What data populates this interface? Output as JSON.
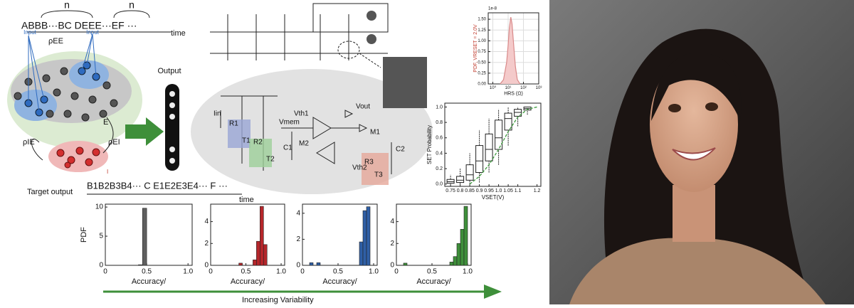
{
  "diagram": {
    "sequence": "ABBB···BC DEEE···EF ···",
    "n_labels": [
      "n",
      "n"
    ],
    "time_top": "time",
    "input_labels": [
      "Input",
      "Input"
    ],
    "rho_ee": "ρEE",
    "excitatory": "E",
    "rho_ie": "ρIE",
    "rho_ei": "ρEI",
    "inhibitory": "I",
    "output": "Output",
    "target_output": "Target output",
    "target_sequence": "B1B2B3B4··· C    E1E2E3E4··· F    ···",
    "time_bottom": "time",
    "variability": "Increasing Variability",
    "circuit_labels": [
      "Iin",
      "R1",
      "T1",
      "R2",
      "T2",
      "Vmem",
      "C1",
      "M2",
      "Vth1",
      "Vout",
      "M1",
      "Vth2",
      "R3",
      "T3",
      "C2"
    ]
  },
  "chart_data": [
    {
      "type": "histogram",
      "color": "#5f5f5f",
      "ylabel": "PDF",
      "xlabel": "Accuracy/",
      "bins": [
        0.4,
        0.45,
        0.5
      ],
      "values": [
        0.1,
        9.8
      ],
      "xlim": [
        0,
        1.05
      ],
      "xticks": [
        0,
        0.5,
        {
          "value": 1,
          "label": "1.0"
        }
      ],
      "ylim": [
        0,
        10.5
      ],
      "yticks": [
        0,
        5,
        10
      ]
    },
    {
      "type": "histogram",
      "color": "#b5262b",
      "xlabel": "Accuracy/",
      "bins": [
        0.4,
        0.45,
        0.5,
        0.55,
        0.6,
        0.65,
        0.7,
        0.75,
        0.8
      ],
      "values": [
        0.2,
        0,
        0,
        0,
        0.5,
        2.2,
        5.4,
        1.9
      ],
      "xlim": [
        0,
        1.05
      ],
      "xticks": [
        0,
        0.5,
        {
          "value": 1,
          "label": "1.0"
        }
      ],
      "ylim": [
        0,
        5.6
      ],
      "yticks": [
        0,
        2,
        4
      ]
    },
    {
      "type": "histogram",
      "color": "#2f5fa6",
      "xlabel": "Accuracy/",
      "bins": [
        0.1,
        0.15,
        0.2,
        0.25,
        0.3,
        0.35,
        0.4,
        0.45,
        0.5,
        0.55,
        0.6,
        0.65,
        0.7,
        0.75,
        0.8,
        0.85,
        0.9,
        0.95
      ],
      "values": [
        0.2,
        0,
        0.2,
        0,
        0,
        0,
        0,
        0,
        0,
        0,
        0,
        0,
        0,
        0,
        1.8,
        4.2,
        4.5
      ],
      "xlim": [
        0,
        1.05
      ],
      "xticks": [
        0,
        0.5,
        {
          "value": 1,
          "label": "1.0"
        }
      ],
      "ylim": [
        0,
        4.7
      ],
      "yticks": [
        0,
        2,
        4
      ]
    },
    {
      "type": "histogram",
      "color": "#3e8f3a",
      "xlabel": "Accuracy/",
      "bins": [
        0.1,
        0.15,
        0.2,
        0.25,
        0.3,
        0.35,
        0.4,
        0.45,
        0.5,
        0.55,
        0.6,
        0.65,
        0.7,
        0.75,
        0.8,
        0.85,
        0.9,
        0.95,
        1.0
      ],
      "values": [
        0.2,
        0,
        0,
        0,
        0,
        0,
        0,
        0,
        0,
        0,
        0,
        0,
        0,
        0.3,
        0.8,
        2,
        3.3,
        5.4
      ],
      "xlim": [
        0,
        1.05
      ],
      "xticks": [
        0,
        0.5,
        {
          "value": 1,
          "label": "1.0"
        }
      ],
      "ylim": [
        0,
        5.6
      ],
      "yticks": [
        0,
        2,
        4
      ]
    },
    {
      "type": "line",
      "color": "#d98a8a",
      "fill": "#f4caca",
      "grid": true,
      "xlog": true,
      "offset_label": "1e-8",
      "ylabel": "PDF, VRESET = 2.0V",
      "ylabel_color": "#c0392b",
      "xlabel": "HRS (Ω)",
      "x": [
        3,
        5,
        8,
        10,
        12,
        15,
        18,
        22,
        30,
        40,
        60
      ],
      "values": [
        0,
        0.1,
        0.5,
        0.9,
        1.3,
        1.55,
        1.4,
        1.0,
        0.4,
        0.1,
        0
      ],
      "xlim": [
        0.5,
        1000
      ],
      "xticks": [
        {
          "value": 1,
          "label": "10⁰"
        },
        {
          "value": 10,
          "label": "10¹"
        },
        {
          "value": 100,
          "label": "10²"
        },
        {
          "value": 1000,
          "label": "10³"
        }
      ],
      "ylim": [
        0,
        1.65
      ],
      "yticks": [
        {
          "value": 0,
          "label": "0.00"
        },
        {
          "value": 0.25,
          "label": "0.25"
        },
        {
          "value": 0.5,
          "label": "0.50"
        },
        {
          "value": 0.75,
          "label": "0.75"
        },
        {
          "value": 1,
          "label": "1.00"
        },
        {
          "value": 1.25,
          "label": "1.25"
        },
        {
          "value": 1.5,
          "label": "1.50"
        }
      ]
    },
    {
      "type": "box",
      "ylabel": "SET Probability",
      "xlabel": "VSET(V)",
      "x": [
        0.75,
        0.8,
        0.85,
        0.9,
        0.95,
        1.0,
        1.05,
        1.1,
        1.15
      ],
      "min": [
        0,
        0,
        0,
        0.02,
        0.15,
        0.25,
        0.5,
        0.75,
        0.9
      ],
      "q1": [
        0.01,
        0.02,
        0.05,
        0.15,
        0.3,
        0.45,
        0.7,
        0.88,
        0.96
      ],
      "median": [
        0.03,
        0.05,
        0.12,
        0.3,
        0.45,
        0.6,
        0.85,
        0.93,
        0.98
      ],
      "q3": [
        0.06,
        0.1,
        0.25,
        0.5,
        0.65,
        0.83,
        0.92,
        0.97,
        1
      ],
      "max": [
        0.12,
        0.2,
        0.4,
        0.7,
        0.85,
        0.97,
        1,
        1,
        1
      ],
      "fit": {
        "color": "#3e9b3e",
        "x": [
          0.85,
          0.9,
          0.95,
          1.0,
          1.05,
          1.1,
          1.15,
          1.2
        ],
        "values": [
          0,
          0.1,
          0.25,
          0.45,
          0.68,
          0.87,
          0.97,
          1
        ]
      },
      "xlim": [
        0.72,
        1.22
      ],
      "xticks": [
        0.75,
        0.8,
        0.85,
        0.9,
        0.95,
        {
          "value": 1,
          "label": "1.0"
        },
        1.05,
        1.1,
        1.2
      ],
      "ylim": [
        -0.03,
        1.05
      ],
      "yticks": [
        {
          "value": 0,
          "label": "0.0"
        },
        0.2,
        0.4,
        0.6,
        0.8,
        {
          "value": 1,
          "label": "1.0"
        }
      ]
    }
  ]
}
